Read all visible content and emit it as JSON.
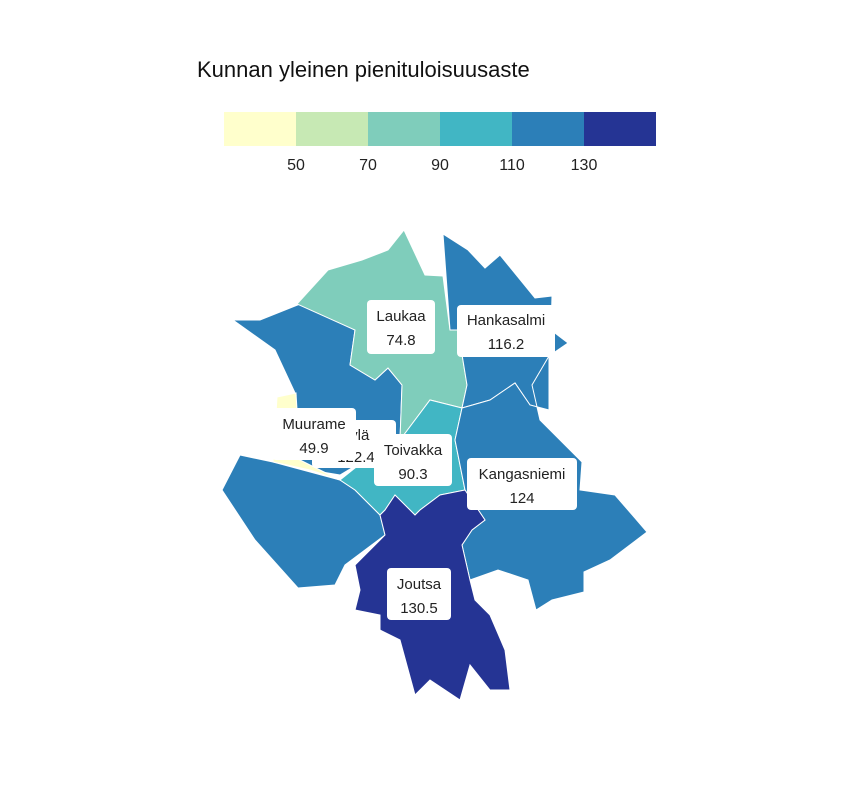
{
  "legend": {
    "title": "Kunnan yleinen pienituloisuusaste",
    "ticks": [
      "50",
      "70",
      "90",
      "110",
      "130"
    ],
    "colors": [
      "#ffffcc",
      "#c7e9b4",
      "#7fcdbb",
      "#41b6c4",
      "#2c7fb8",
      "#253494"
    ]
  },
  "regions": [
    {
      "key": "jyvaskyla",
      "color": "#2c7fb8"
    },
    {
      "key": "laukaa",
      "name": "Laukaa",
      "value": "74.8",
      "color": "#7fcdbb"
    },
    {
      "key": "hankasalmi",
      "name": "Hankasalmi",
      "value": "116.2",
      "color": "#2c7fb8"
    },
    {
      "key": "muurame",
      "name": "Muurame",
      "value": "49.9",
      "color": "#ffffcc"
    },
    {
      "key": "toivakka",
      "name": "Toivakka",
      "value": "90.3",
      "color": "#41b6c4"
    },
    {
      "key": "kangasniemi",
      "name": "Kangasniemi",
      "value": "124",
      "color": "#2c7fb8"
    },
    {
      "key": "joutsa",
      "name": "Joutsa",
      "value": "130.5",
      "color": "#253494"
    }
  ],
  "hidden_label": {
    "name": "kylä",
    "value": "122.4"
  }
}
